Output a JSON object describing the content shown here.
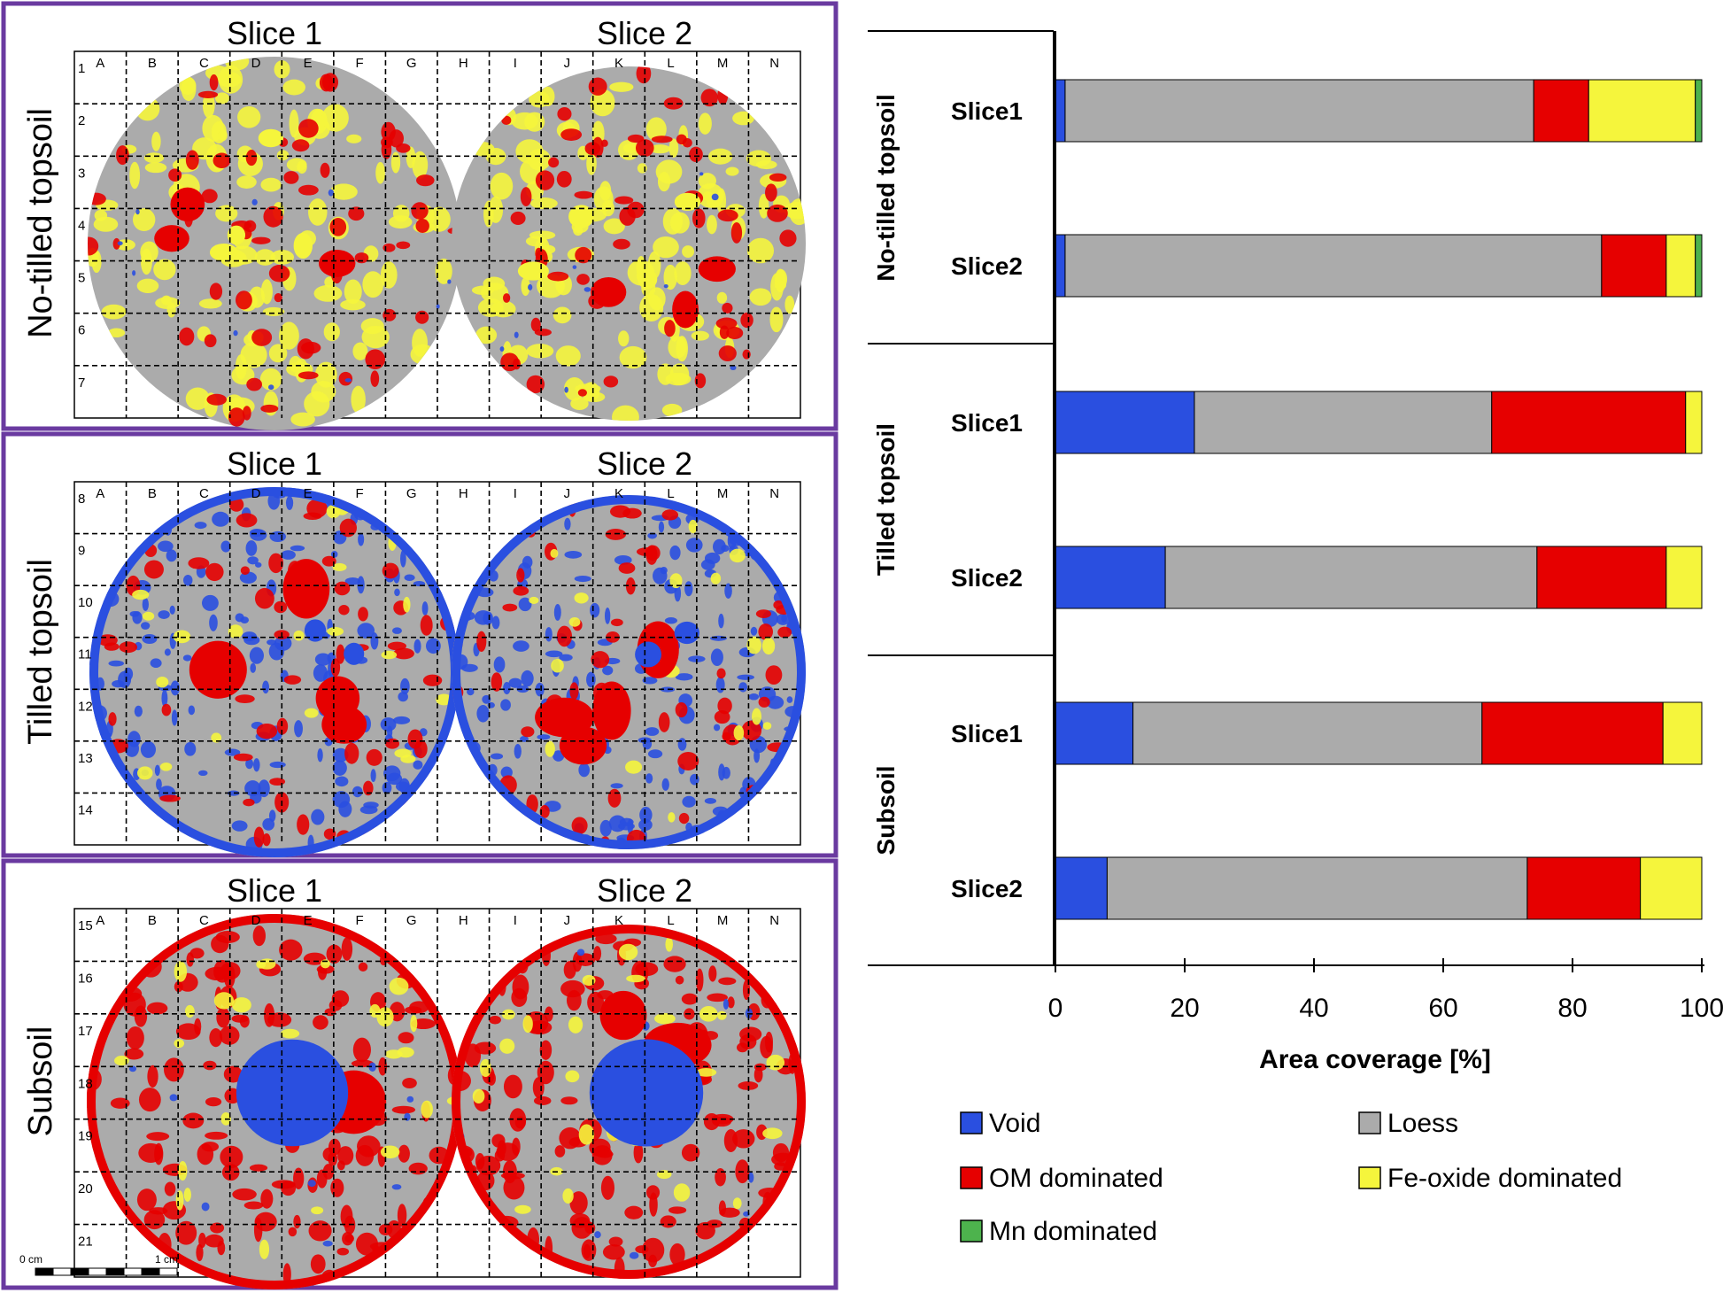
{
  "colors": {
    "void": "#2a4fe0",
    "loess": "#ababab",
    "om": "#e60000",
    "fe": "#f5f53c",
    "mn": "#4db34d",
    "frame": "#6a3aa0"
  },
  "panels": [
    {
      "id": "no-tilled",
      "label": "No-tilled topsoil",
      "slice1": "Slice 1",
      "slice2": "Slice 2",
      "rows": [
        "1",
        "2",
        "3",
        "4",
        "5",
        "6",
        "7"
      ]
    },
    {
      "id": "tilled",
      "label": "Tilled topsoil",
      "slice1": "Slice 1",
      "slice2": "Slice 2",
      "rows": [
        "8",
        "9",
        "10",
        "11",
        "12",
        "13",
        "14"
      ]
    },
    {
      "id": "subsoil",
      "label": "Subsoil",
      "slice1": "Slice 1",
      "slice2": "Slice 2",
      "rows": [
        "15",
        "16",
        "17",
        "18",
        "19",
        "20",
        "21"
      ]
    }
  ],
  "column_letters": [
    "A",
    "B",
    "C",
    "D",
    "E",
    "F",
    "G",
    "H",
    "I",
    "J",
    "K",
    "L",
    "M",
    "N"
  ],
  "scalebar": {
    "start_label": "0 cm",
    "end_label": "1 cm"
  },
  "chart_data": {
    "type": "bar",
    "orientation": "horizontal",
    "stacked": true,
    "xlabel": "Area coverage [%]",
    "xlim": [
      0,
      100
    ],
    "xticks": [
      0,
      20,
      40,
      60,
      80,
      100
    ],
    "groups": [
      "No-tilled topsoil",
      "Tilled topsoil",
      "Subsoil"
    ],
    "categories": [
      "Slice1",
      "Slice2",
      "Slice1",
      "Slice2",
      "Slice1",
      "Slice2"
    ],
    "series": [
      {
        "name": "Void",
        "key": "void",
        "values": [
          1.5,
          1.5,
          21.5,
          17.0,
          12.0,
          8.0
        ]
      },
      {
        "name": "Loess",
        "key": "loess",
        "values": [
          72.5,
          83.0,
          46.0,
          57.5,
          54.0,
          65.0
        ]
      },
      {
        "name": "OM dominated",
        "key": "om",
        "values": [
          8.5,
          10.0,
          30.0,
          20.0,
          28.0,
          17.5
        ]
      },
      {
        "name": "Fe-oxide dominated",
        "key": "fe",
        "values": [
          16.5,
          4.5,
          2.5,
          5.5,
          6.0,
          9.5
        ]
      },
      {
        "name": "Mn dominated",
        "key": "mn",
        "values": [
          1.0,
          1.0,
          0.0,
          0.0,
          0.0,
          0.0
        ]
      }
    ],
    "legend": [
      "Void",
      "Loess",
      "OM dominated",
      "Fe-oxide dominated",
      "Mn dominated"
    ]
  }
}
